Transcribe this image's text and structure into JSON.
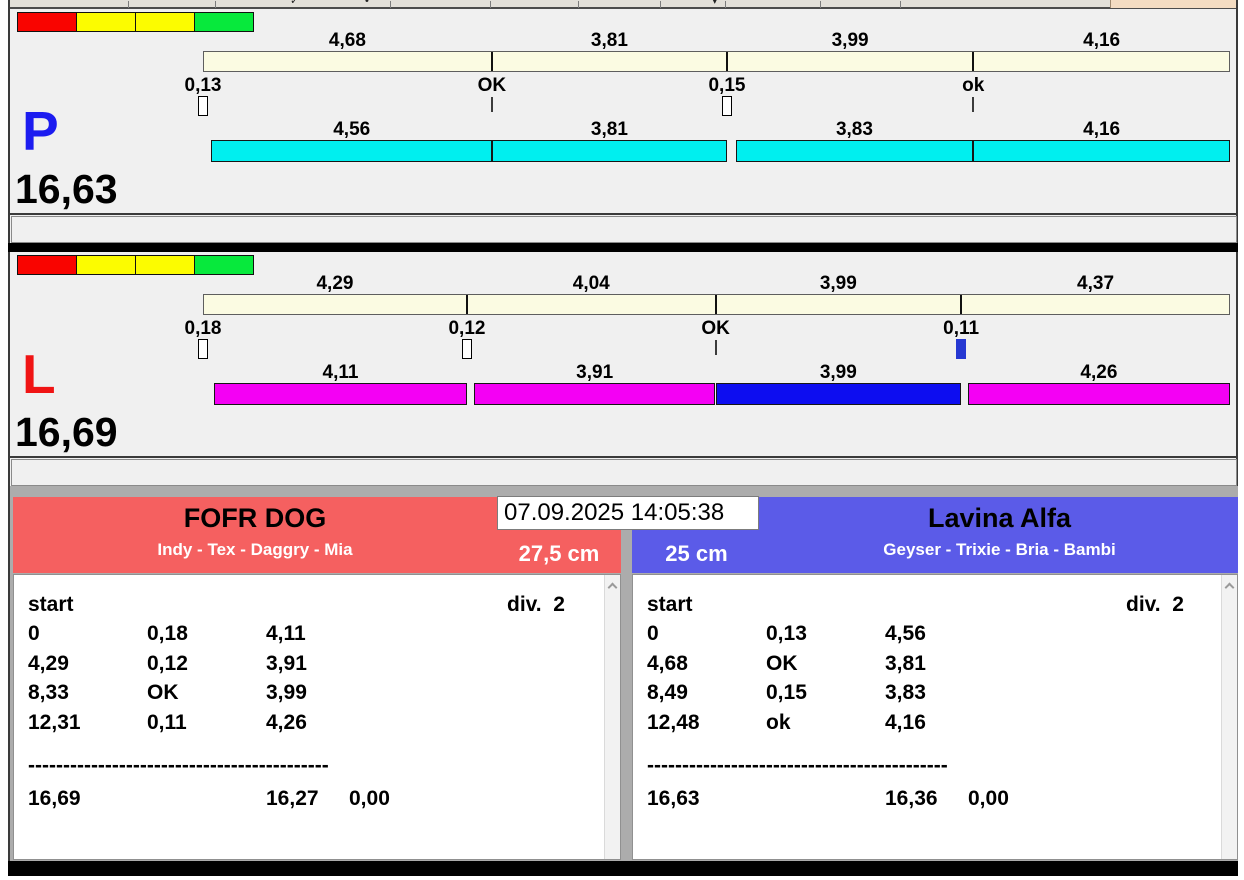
{
  "datetime": "07.09.2025 14:05:38",
  "status_lights": {
    "colors": [
      "#F90400",
      "#FCFC00",
      "#FCFC00",
      "#07E93C"
    ]
  },
  "lanes": [
    {
      "letter": "P",
      "letter_color": "#1C1CF0",
      "total": "16,63",
      "splits": [
        {
          "label": "4,68",
          "value": 4.68
        },
        {
          "label": "3,81",
          "value": 3.81
        },
        {
          "label": "3,99",
          "value": 3.99
        },
        {
          "label": "4,16",
          "value": 4.16
        }
      ],
      "changeovers": [
        {
          "label": "0,13",
          "value": 0.13,
          "marker": "box",
          "marker_color": "#FFFFFF"
        },
        {
          "label": "OK",
          "value": 0,
          "marker": "tick"
        },
        {
          "label": "0,15",
          "value": 0.15,
          "marker": "box",
          "marker_color": "#FFFFFF"
        },
        {
          "label": "ok",
          "value": 0,
          "marker": "tick"
        }
      ],
      "runs": [
        {
          "label": "4,56",
          "value": 4.56,
          "color": "#00EFEF"
        },
        {
          "label": "3,81",
          "value": 3.81,
          "color": "#00EFEF"
        },
        {
          "label": "3,83",
          "value": 3.83,
          "color": "#00EFEF"
        },
        {
          "label": "4,16",
          "value": 4.16,
          "color": "#00EFEF"
        }
      ]
    },
    {
      "letter": "L",
      "letter_color": "#F01414",
      "total": "16,69",
      "splits": [
        {
          "label": "4,29",
          "value": 4.29
        },
        {
          "label": "4,04",
          "value": 4.04
        },
        {
          "label": "3,99",
          "value": 3.99
        },
        {
          "label": "4,37",
          "value": 4.37
        }
      ],
      "changeovers": [
        {
          "label": "0,18",
          "value": 0.18,
          "marker": "box",
          "marker_color": "#FFFFFF"
        },
        {
          "label": "0,12",
          "value": 0.12,
          "marker": "box",
          "marker_color": "#FFFFFF"
        },
        {
          "label": "OK",
          "value": 0,
          "marker": "tick"
        },
        {
          "label": "0,11",
          "value": 0.11,
          "marker": "box",
          "marker_color": "#2638D2"
        }
      ],
      "runs": [
        {
          "label": "4,11",
          "value": 4.11,
          "color": "#F400F4"
        },
        {
          "label": "3,91",
          "value": 3.91,
          "color": "#F400F4"
        },
        {
          "label": "3,99",
          "value": 3.99,
          "color": "#0D0DF0"
        },
        {
          "label": "4,26",
          "value": 4.26,
          "color": "#F400F4"
        }
      ]
    }
  ],
  "teams": [
    {
      "name": "FOFR DOG",
      "dogs": "Indy - Tex - Daggry - Mia",
      "height": "27,5 cm",
      "header_color": "#F56060",
      "table": {
        "header_left": "start",
        "header_right": "div.  2",
        "rows": [
          [
            "0",
            "0,18",
            "4,11"
          ],
          [
            "4,29",
            "0,12",
            "3,91"
          ],
          [
            "8,33",
            "OK",
            "3,99"
          ],
          [
            "12,31",
            "0,11",
            "4,26"
          ]
        ],
        "separator": "-------------------------------------------",
        "totals": [
          "16,69",
          "16,27",
          "0,00"
        ]
      }
    },
    {
      "name": "Lavina Alfa",
      "dogs": "Geyser - Trixie - Bria - Bambi",
      "height": "25 cm",
      "header_color": "#5B5BE8",
      "table": {
        "header_left": "start",
        "header_right": "div.  2",
        "rows": [
          [
            "0",
            "0,13",
            "4,56"
          ],
          [
            "4,68",
            "OK",
            "3,81"
          ],
          [
            "8,49",
            "0,15",
            "3,83"
          ],
          [
            "12,48",
            "ok",
            "4,16"
          ]
        ],
        "separator": "-------------------------------------------",
        "totals": [
          "16,63",
          "16,36",
          "0,00"
        ]
      }
    }
  ]
}
